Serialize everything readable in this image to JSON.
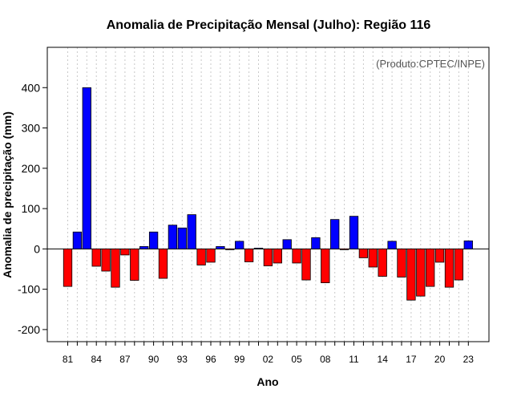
{
  "chart_data": {
    "type": "bar",
    "title": "Anomalia de Precipitação Mensal (Julho): Região 116",
    "xlabel": "Ano",
    "ylabel": "Anomalia de precipitação (mm)",
    "annotation": "(Produto:CPTEC/INPE)",
    "ylim": [
      -230,
      500
    ],
    "yticks": [
      -200,
      -100,
      0,
      100,
      200,
      300,
      400
    ],
    "xtick_labels": [
      "81",
      "84",
      "87",
      "90",
      "93",
      "96",
      "99",
      "02",
      "05",
      "08",
      "11",
      "14",
      "17",
      "20",
      "23"
    ],
    "categories": [
      "1981",
      "1982",
      "1983",
      "1984",
      "1985",
      "1986",
      "1987",
      "1988",
      "1989",
      "1990",
      "1991",
      "1992",
      "1993",
      "1994",
      "1995",
      "1996",
      "1997",
      "1998",
      "1999",
      "2000",
      "2001",
      "2002",
      "2003",
      "2004",
      "2005",
      "2006",
      "2007",
      "2008",
      "2009",
      "2010",
      "2011",
      "2012",
      "2013",
      "2014",
      "2015",
      "2016",
      "2017",
      "2018",
      "2019",
      "2020",
      "2021",
      "2022",
      "2023"
    ],
    "values": [
      -93,
      42,
      400,
      -43,
      -55,
      -95,
      -15,
      -78,
      6,
      42,
      -73,
      59,
      52,
      85,
      -40,
      -33,
      6,
      -2,
      19,
      -32,
      2,
      -42,
      -35,
      23,
      -35,
      -77,
      28,
      -84,
      73,
      -2,
      81,
      -22,
      -45,
      -68,
      19,
      -70,
      -127,
      -117,
      -93,
      -33,
      -95,
      -77,
      20
    ],
    "positive_color": "#0000ff",
    "negative_color": "#ff0000",
    "grid": "vertical-dotted",
    "legend": "none"
  }
}
